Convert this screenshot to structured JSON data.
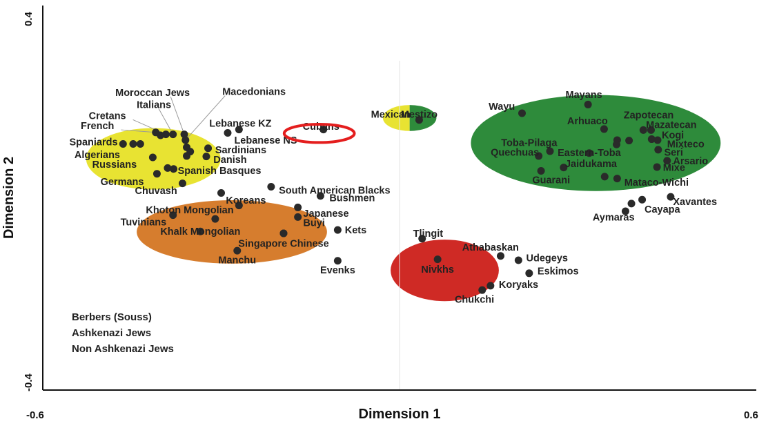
{
  "chart_data": {
    "type": "scatter",
    "xlabel": "Dimension 1",
    "ylabel": "Dimension 2",
    "xlim": [
      -0.6,
      0.6
    ],
    "ylim": [
      -0.4,
      0.4
    ],
    "x_ticks": [
      "-0.6",
      "0.6"
    ],
    "y_ticks": [
      "0.4",
      "-0.4"
    ],
    "grid": false,
    "colors": {
      "yellow": "#e8e332",
      "orange": "#d67d2e",
      "green": "#2e8b3b",
      "red": "#cf2a25",
      "highlight": "#e41e1e",
      "point": "#2a2a2a"
    },
    "clusters": [
      {
        "color": "yellow",
        "cx": -0.414,
        "cy": 0.081,
        "rx": 0.113,
        "ry": 0.064
      },
      {
        "color": "orange",
        "cx": -0.282,
        "cy": -0.071,
        "rx": 0.16,
        "ry": 0.066
      },
      {
        "color": "green",
        "cx": 0.33,
        "cy": 0.114,
        "rx": 0.21,
        "ry": 0.1
      },
      {
        "color": "red",
        "cx": 0.076,
        "cy": -0.151,
        "rx": 0.091,
        "ry": 0.064
      },
      {
        "color": "yellow",
        "cx": 0.017,
        "cy": 0.166,
        "rx": 0.045,
        "ry": 0.027,
        "half": "left"
      },
      {
        "color": "green",
        "cx": 0.017,
        "cy": 0.166,
        "rx": 0.045,
        "ry": 0.027,
        "half": "right"
      }
    ],
    "highlight": {
      "label": "Cubans",
      "cx": -0.135,
      "cy": 0.134,
      "rx": 0.059,
      "ry": 0.019
    },
    "points": [
      {
        "name": "French",
        "x": -0.41,
        "y": 0.136,
        "lx": -0.48,
        "ly": 0.15,
        "anchor": "end"
      },
      {
        "name": "Cretans",
        "x": -0.393,
        "y": 0.132,
        "lx": -0.46,
        "ly": 0.171,
        "anchor": "end"
      },
      {
        "name": "Italians",
        "x": -0.381,
        "y": 0.132,
        "lx": -0.442,
        "ly": 0.194,
        "anchor": "start"
      },
      {
        "name": "Moroccan Jews",
        "x": -0.362,
        "y": 0.132,
        "lx": -0.478,
        "ly": 0.219,
        "anchor": "start"
      },
      {
        "name": "Macedonians",
        "x": -0.36,
        "y": 0.12,
        "lx": -0.298,
        "ly": 0.221,
        "anchor": "start"
      },
      {
        "name": "Spaniards",
        "x": -0.465,
        "y": 0.112,
        "lx": -0.474,
        "ly": 0.116,
        "anchor": "end"
      },
      {
        "name": "",
        "x": -0.448,
        "y": 0.112
      },
      {
        "name": "",
        "x": -0.436,
        "y": 0.112
      },
      {
        "name": "",
        "x": -0.402,
        "y": 0.13
      },
      {
        "name": "",
        "x": -0.358,
        "y": 0.105
      },
      {
        "name": "",
        "x": -0.352,
        "y": 0.096
      },
      {
        "name": "",
        "x": -0.358,
        "y": 0.087
      },
      {
        "name": "Algerians",
        "x": -0.415,
        "y": 0.084,
        "lx": -0.47,
        "ly": 0.09,
        "anchor": "end"
      },
      {
        "name": "Russians",
        "x": -0.39,
        "y": 0.062,
        "lx": -0.442,
        "ly": 0.07,
        "anchor": "end"
      },
      {
        "name": "Germans",
        "x": -0.408,
        "y": 0.05,
        "lx": -0.43,
        "ly": 0.034,
        "anchor": "end"
      },
      {
        "name": "Chuvash",
        "x": -0.365,
        "y": 0.03,
        "lx": -0.374,
        "ly": 0.015,
        "anchor": "end"
      },
      {
        "name": "Spanish Basques",
        "x": -0.38,
        "y": 0.06,
        "lx": -0.373,
        "ly": 0.057,
        "anchor": "start"
      },
      {
        "name": "Danish",
        "x": -0.325,
        "y": 0.086,
        "lx": -0.313,
        "ly": 0.08,
        "anchor": "start"
      },
      {
        "name": "Sardinians",
        "x": -0.322,
        "y": 0.103,
        "lx": -0.31,
        "ly": 0.1,
        "anchor": "start"
      },
      {
        "name": "Lebanese KZ",
        "x": -0.289,
        "y": 0.135,
        "lx": -0.32,
        "ly": 0.155,
        "anchor": "start"
      },
      {
        "name": "Lebanese NS",
        "x": -0.27,
        "y": 0.142,
        "lx": -0.278,
        "ly": 0.12,
        "anchor": "start"
      },
      {
        "name": "Cubans",
        "x": -0.128,
        "y": 0.142,
        "lx": -0.132,
        "ly": 0.149,
        "anchor": "middle"
      },
      {
        "name": "Mestizo",
        "x": 0.033,
        "y": 0.162,
        "lx": 0.033,
        "ly": 0.174,
        "anchor": "middle"
      },
      {
        "name": "South American Blacks",
        "x": -0.216,
        "y": 0.023,
        "lx": -0.203,
        "ly": 0.016,
        "anchor": "start"
      },
      {
        "name": "Bushmen",
        "x": -0.133,
        "y": 0.004,
        "lx": -0.118,
        "ly": 0.0,
        "anchor": "start"
      },
      {
        "name": "Koreans",
        "x": -0.3,
        "y": 0.01,
        "lx": -0.292,
        "ly": -0.005,
        "anchor": "start"
      },
      {
        "name": "Khoton Mongolian",
        "x": -0.27,
        "y": -0.016,
        "lx": -0.279,
        "ly": -0.025,
        "anchor": "end"
      },
      {
        "name": "Tuvinians",
        "x": -0.381,
        "y": -0.036,
        "lx": -0.392,
        "ly": -0.05,
        "anchor": "end"
      },
      {
        "name": "",
        "x": -0.31,
        "y": -0.044
      },
      {
        "name": "Khalk Mongolian",
        "x": -0.335,
        "y": -0.07,
        "lx": -0.335,
        "ly": -0.07,
        "anchor": "middle"
      },
      {
        "name": "Japanese",
        "x": -0.171,
        "y": -0.02,
        "lx": -0.162,
        "ly": -0.032,
        "anchor": "start"
      },
      {
        "name": "Buyi",
        "x": -0.171,
        "y": -0.04,
        "lx": -0.162,
        "ly": -0.052,
        "anchor": "start"
      },
      {
        "name": "",
        "x": -0.195,
        "y": -0.074
      },
      {
        "name": "Kets",
        "x": -0.104,
        "y": -0.067,
        "lx": -0.092,
        "ly": -0.067,
        "anchor": "start"
      },
      {
        "name": "Singapore Chinese",
        "x": -0.195,
        "y": -0.074,
        "lx": -0.195,
        "ly": -0.095,
        "anchor": "middle"
      },
      {
        "name": "Manchu",
        "x": -0.273,
        "y": -0.11,
        "lx": -0.273,
        "ly": -0.129,
        "anchor": "middle"
      },
      {
        "name": "Evenks",
        "x": -0.104,
        "y": -0.131,
        "lx": -0.104,
        "ly": -0.15,
        "anchor": "middle"
      },
      {
        "name": "Tlingit",
        "x": 0.038,
        "y": -0.085,
        "lx": 0.048,
        "ly": -0.074,
        "anchor": "middle"
      },
      {
        "name": "Athabaskan",
        "x": 0.17,
        "y": -0.121,
        "lx": 0.153,
        "ly": -0.103,
        "anchor": "middle"
      },
      {
        "name": "Udegeys",
        "x": 0.2,
        "y": -0.13,
        "lx": 0.213,
        "ly": -0.125,
        "anchor": "start"
      },
      {
        "name": "Nivkhs",
        "x": 0.064,
        "y": -0.128,
        "lx": 0.064,
        "ly": -0.149,
        "anchor": "middle"
      },
      {
        "name": "Eskimos",
        "x": 0.218,
        "y": -0.157,
        "lx": 0.232,
        "ly": -0.152,
        "anchor": "start"
      },
      {
        "name": "Koryaks",
        "x": 0.153,
        "y": -0.183,
        "lx": 0.167,
        "ly": -0.18,
        "anchor": "start"
      },
      {
        "name": "Chukchi",
        "x": 0.139,
        "y": -0.192,
        "lx": 0.126,
        "ly": -0.211,
        "anchor": "middle"
      },
      {
        "name": "Wayu",
        "x": 0.206,
        "y": 0.176,
        "lx": 0.172,
        "ly": 0.19,
        "anchor": "middle"
      },
      {
        "name": "Mayans",
        "x": 0.317,
        "y": 0.194,
        "lx": 0.31,
        "ly": 0.215,
        "anchor": "middle"
      },
      {
        "name": "Zapotecan",
        "x": 0.41,
        "y": 0.141,
        "lx": 0.419,
        "ly": 0.172,
        "anchor": "middle"
      },
      {
        "name": "Arhuaco",
        "x": 0.344,
        "y": 0.143,
        "lx": 0.316,
        "ly": 0.16,
        "anchor": "middle"
      },
      {
        "name": "Mazatecan",
        "x": 0.423,
        "y": 0.141,
        "lx": 0.457,
        "ly": 0.152,
        "anchor": "middle"
      },
      {
        "name": "Kogi",
        "x": 0.424,
        "y": 0.122,
        "lx": 0.441,
        "ly": 0.131,
        "anchor": "start"
      },
      {
        "name": "Mixteco",
        "x": 0.434,
        "y": 0.12,
        "lx": 0.45,
        "ly": 0.112,
        "anchor": "start"
      },
      {
        "name": "Toba-Pilaga",
        "x": 0.253,
        "y": 0.097,
        "lx": 0.218,
        "ly": 0.115,
        "anchor": "middle"
      },
      {
        "name": "",
        "x": 0.366,
        "y": 0.12
      },
      {
        "name": "",
        "x": 0.365,
        "y": 0.111
      },
      {
        "name": "",
        "x": 0.386,
        "y": 0.119
      },
      {
        "name": "Seri",
        "x": 0.435,
        "y": 0.1,
        "lx": 0.445,
        "ly": 0.095,
        "anchor": "start"
      },
      {
        "name": "Quechuas",
        "x": 0.234,
        "y": 0.087,
        "lx": 0.194,
        "ly": 0.095,
        "anchor": "middle"
      },
      {
        "name": "Eastern-Toba",
        "x": 0.319,
        "y": 0.093,
        "lx": 0.319,
        "ly": 0.094,
        "anchor": "middle"
      },
      {
        "name": "Arsario",
        "x": 0.45,
        "y": 0.077,
        "lx": 0.46,
        "ly": 0.077,
        "anchor": "start"
      },
      {
        "name": "Mixe",
        "x": 0.433,
        "y": 0.064,
        "lx": 0.443,
        "ly": 0.063,
        "anchor": "start"
      },
      {
        "name": "Jaidukama",
        "x": 0.276,
        "y": 0.063,
        "lx": 0.322,
        "ly": 0.071,
        "anchor": "middle"
      },
      {
        "name": "Guarani",
        "x": 0.238,
        "y": 0.056,
        "lx": 0.255,
        "ly": 0.037,
        "anchor": "middle"
      },
      {
        "name": "",
        "x": 0.345,
        "y": 0.044
      },
      {
        "name": "Mataco-Wichi",
        "x": 0.366,
        "y": 0.04,
        "lx": 0.378,
        "ly": 0.032,
        "anchor": "start"
      },
      {
        "name": "Xavantes",
        "x": 0.456,
        "y": 0.002,
        "lx": 0.46,
        "ly": -0.008,
        "anchor": "start"
      },
      {
        "name": "",
        "x": 0.408,
        "y": -0.004
      },
      {
        "name": "Cayapa",
        "x": 0.39,
        "y": -0.012,
        "lx": 0.412,
        "ly": -0.024,
        "anchor": "start"
      },
      {
        "name": "Aymaras",
        "x": 0.38,
        "y": -0.028,
        "lx": 0.36,
        "ly": -0.04,
        "anchor": "middle"
      }
    ],
    "text_labels": [
      {
        "name": "Mexican",
        "lx": -0.048,
        "ly": 0.174,
        "anchor": "start"
      }
    ],
    "ungrouped": [
      "Berbers (Souss)",
      "Ashkenazi Jews",
      "Non Ashkenazi Jews"
    ]
  }
}
